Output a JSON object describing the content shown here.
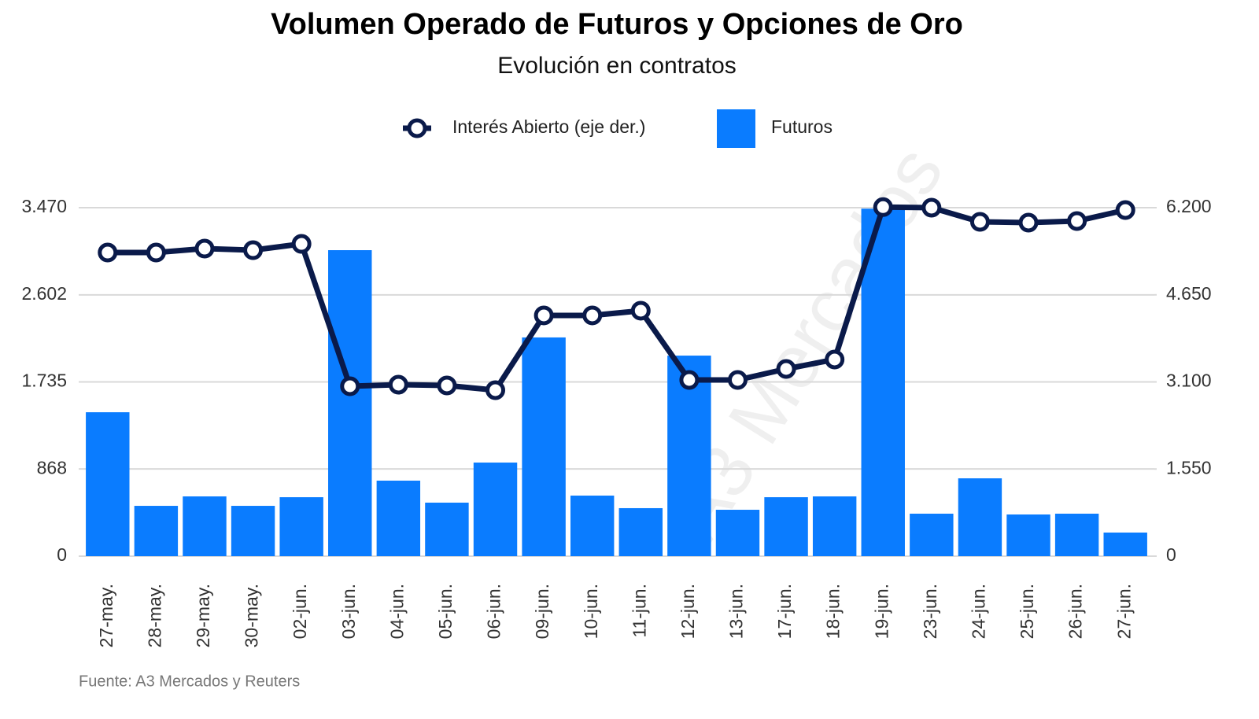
{
  "chart_data": {
    "type": "bar-line",
    "title": "Volumen Operado de Futuros y Opciones de Oro",
    "subtitle": "Evolución en contratos",
    "source": "Fuente: A3 Mercados y Reuters",
    "watermark": "A3 Mercados",
    "categories": [
      "27-may.",
      "28-may.",
      "29-may.",
      "30-may.",
      "02-jun.",
      "03-jun.",
      "04-jun.",
      "05-jun.",
      "06-jun.",
      "09-jun.",
      "10-jun.",
      "11-jun.",
      "12-jun.",
      "13-jun.",
      "17-jun.",
      "18-jun.",
      "19-jun.",
      "23-jun.",
      "24-jun.",
      "25-jun.",
      "26-jun.",
      "27-jun."
    ],
    "series": [
      {
        "name": "Interés Abierto (eje der.)",
        "type": "line",
        "axis": "y2",
        "color": "#0a1a4a",
        "values": [
          5402,
          5402,
          5472,
          5444,
          5556,
          3023,
          3051,
          3037,
          2953,
          4283,
          4283,
          4367,
          3135,
          3135,
          3331,
          3499,
          6210,
          6200,
          5948,
          5934,
          5962,
          6158
        ]
      },
      {
        "name": "Futuros",
        "type": "bar",
        "color": "#0a7cff",
        "values": [
          1433,
          501,
          595,
          501,
          587,
          3047,
          752,
          533,
          932,
          2178,
          603,
          478,
          1997,
          462,
          587,
          595,
          3460,
          423,
          775,
          415,
          423,
          235
        ]
      }
    ],
    "ylim": [
      0,
      3470
    ],
    "yticks": [
      0,
      868,
      {
        "value": 1735,
        "label": "1.735"
      },
      {
        "value": 2602,
        "label": "2.602"
      },
      {
        "value": 3470,
        "label": "3.470"
      }
    ],
    "y2lim": [
      0,
      6200
    ],
    "y2ticks": [
      0,
      {
        "value": 1550,
        "label": "1.550"
      },
      {
        "value": 3100,
        "label": "3.100"
      },
      {
        "value": 4650,
        "label": "4.650"
      },
      {
        "value": 6200,
        "label": "6.200"
      }
    ],
    "grid": true,
    "legend": "top"
  }
}
